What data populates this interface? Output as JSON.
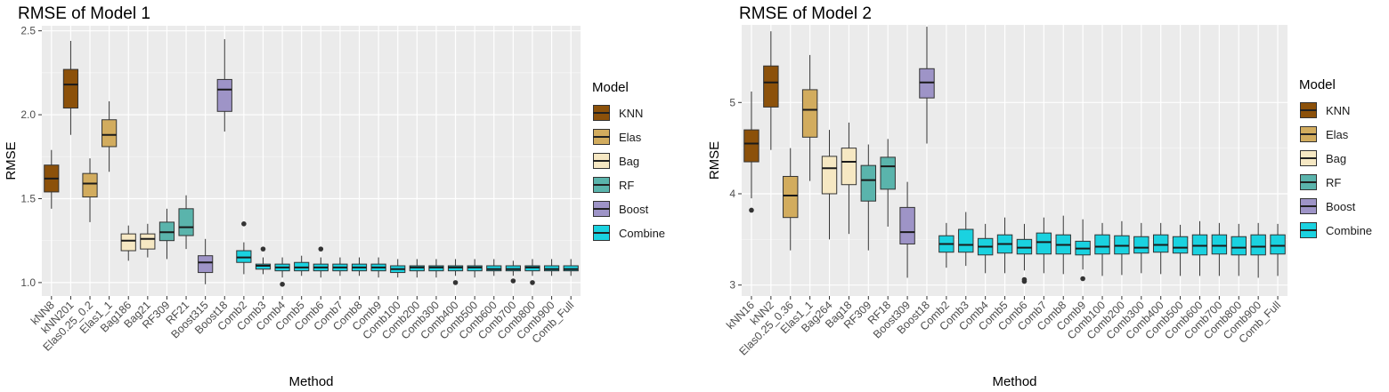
{
  "colors": {
    "KNN": "#8c510a",
    "Elas": "#d2ac5e",
    "Bag": "#f6e8c3",
    "RF": "#5ab4ac",
    "Boost": "#9e94c7",
    "Combine": "#1ad2e0",
    "panel_bg": "#ebebeb",
    "grid": "#ffffff"
  },
  "legend": {
    "title": "Model",
    "items": [
      "KNN",
      "Elas",
      "Bag",
      "RF",
      "Boost",
      "Combine"
    ]
  },
  "chart_data": [
    {
      "type": "boxplot",
      "title": "RMSE of Model 1",
      "xlabel": "Method",
      "ylabel": "RMSE",
      "ylim": [
        0.92,
        2.53
      ],
      "yticks": [
        1.0,
        1.5,
        2.0,
        2.5
      ],
      "ytick_labels": [
        "1.0",
        "1.5",
        "2.0",
        "2.5"
      ],
      "grid": true,
      "legend_position": "right",
      "boxes": [
        {
          "label": "kNN8",
          "group": "KNN",
          "whisker_low": 1.44,
          "q1": 1.54,
          "median": 1.62,
          "q3": 1.7,
          "whisker_high": 1.79,
          "outliers": []
        },
        {
          "label": "kNN201",
          "group": "KNN",
          "whisker_low": 1.88,
          "q1": 2.04,
          "median": 2.18,
          "q3": 2.27,
          "whisker_high": 2.44,
          "outliers": []
        },
        {
          "label": "Elas0.25_0.2",
          "group": "Elas",
          "whisker_low": 1.36,
          "q1": 1.51,
          "median": 1.59,
          "q3": 1.65,
          "whisker_high": 1.74,
          "outliers": []
        },
        {
          "label": "Elas1_1",
          "group": "Elas",
          "whisker_low": 1.66,
          "q1": 1.81,
          "median": 1.88,
          "q3": 1.97,
          "whisker_high": 2.08,
          "outliers": []
        },
        {
          "label": "Bag186",
          "group": "Bag",
          "whisker_low": 1.13,
          "q1": 1.19,
          "median": 1.25,
          "q3": 1.29,
          "whisker_high": 1.34,
          "outliers": []
        },
        {
          "label": "Bag21",
          "group": "Bag",
          "whisker_low": 1.15,
          "q1": 1.2,
          "median": 1.26,
          "q3": 1.29,
          "whisker_high": 1.35,
          "outliers": []
        },
        {
          "label": "RF309",
          "group": "RF",
          "whisker_low": 1.14,
          "q1": 1.25,
          "median": 1.3,
          "q3": 1.36,
          "whisker_high": 1.44,
          "outliers": []
        },
        {
          "label": "RF21",
          "group": "RF",
          "whisker_low": 1.2,
          "q1": 1.28,
          "median": 1.33,
          "q3": 1.44,
          "whisker_high": 1.52,
          "outliers": []
        },
        {
          "label": "Boost315",
          "group": "Boost",
          "whisker_low": 0.99,
          "q1": 1.06,
          "median": 1.12,
          "q3": 1.16,
          "whisker_high": 1.26,
          "outliers": []
        },
        {
          "label": "Boost18",
          "group": "Boost",
          "whisker_low": 1.9,
          "q1": 2.02,
          "median": 2.15,
          "q3": 2.21,
          "whisker_high": 2.45,
          "outliers": []
        },
        {
          "label": "Comb2",
          "group": "Combine",
          "whisker_low": 1.05,
          "q1": 1.12,
          "median": 1.15,
          "q3": 1.19,
          "whisker_high": 1.24,
          "outliers": [
            1.35
          ]
        },
        {
          "label": "Comb3",
          "group": "Combine",
          "whisker_low": 1.05,
          "q1": 1.08,
          "median": 1.1,
          "q3": 1.11,
          "whisker_high": 1.15,
          "outliers": [
            1.2
          ]
        },
        {
          "label": "Comb4",
          "group": "Combine",
          "whisker_low": 1.03,
          "q1": 1.07,
          "median": 1.09,
          "q3": 1.11,
          "whisker_high": 1.15,
          "outliers": [
            0.99
          ]
        },
        {
          "label": "Comb5",
          "group": "Combine",
          "whisker_low": 1.04,
          "q1": 1.07,
          "median": 1.09,
          "q3": 1.12,
          "whisker_high": 1.16,
          "outliers": []
        },
        {
          "label": "Comb6",
          "group": "Combine",
          "whisker_low": 1.03,
          "q1": 1.07,
          "median": 1.09,
          "q3": 1.11,
          "whisker_high": 1.15,
          "outliers": [
            1.2
          ]
        },
        {
          "label": "Comb7",
          "group": "Combine",
          "whisker_low": 1.04,
          "q1": 1.07,
          "median": 1.09,
          "q3": 1.11,
          "whisker_high": 1.15,
          "outliers": []
        },
        {
          "label": "Comb8",
          "group": "Combine",
          "whisker_low": 1.04,
          "q1": 1.07,
          "median": 1.09,
          "q3": 1.11,
          "whisker_high": 1.15,
          "outliers": []
        },
        {
          "label": "Comb9",
          "group": "Combine",
          "whisker_low": 1.03,
          "q1": 1.07,
          "median": 1.09,
          "q3": 1.11,
          "whisker_high": 1.15,
          "outliers": []
        },
        {
          "label": "Comb100",
          "group": "Combine",
          "whisker_low": 1.03,
          "q1": 1.06,
          "median": 1.08,
          "q3": 1.1,
          "whisker_high": 1.14,
          "outliers": []
        },
        {
          "label": "Comb200",
          "group": "Combine",
          "whisker_low": 1.03,
          "q1": 1.07,
          "median": 1.09,
          "q3": 1.1,
          "whisker_high": 1.14,
          "outliers": []
        },
        {
          "label": "Comb300",
          "group": "Combine",
          "whisker_low": 1.03,
          "q1": 1.07,
          "median": 1.09,
          "q3": 1.1,
          "whisker_high": 1.14,
          "outliers": []
        },
        {
          "label": "Comb400",
          "group": "Combine",
          "whisker_low": 1.04,
          "q1": 1.07,
          "median": 1.09,
          "q3": 1.1,
          "whisker_high": 1.14,
          "outliers": [
            1.0
          ]
        },
        {
          "label": "Comb500",
          "group": "Combine",
          "whisker_low": 1.03,
          "q1": 1.07,
          "median": 1.09,
          "q3": 1.1,
          "whisker_high": 1.14,
          "outliers": []
        },
        {
          "label": "Comb600",
          "group": "Combine",
          "whisker_low": 1.04,
          "q1": 1.07,
          "median": 1.08,
          "q3": 1.1,
          "whisker_high": 1.14,
          "outliers": []
        },
        {
          "label": "Comb700",
          "group": "Combine",
          "whisker_low": 1.04,
          "q1": 1.07,
          "median": 1.08,
          "q3": 1.1,
          "whisker_high": 1.13,
          "outliers": [
            1.01
          ]
        },
        {
          "label": "Comb800",
          "group": "Combine",
          "whisker_low": 1.04,
          "q1": 1.07,
          "median": 1.09,
          "q3": 1.1,
          "whisker_high": 1.14,
          "outliers": [
            1.0
          ]
        },
        {
          "label": "Comb900",
          "group": "Combine",
          "whisker_low": 1.04,
          "q1": 1.07,
          "median": 1.08,
          "q3": 1.1,
          "whisker_high": 1.14,
          "outliers": []
        },
        {
          "label": "Comb_Full",
          "group": "Combine",
          "whisker_low": 1.04,
          "q1": 1.07,
          "median": 1.08,
          "q3": 1.1,
          "whisker_high": 1.14,
          "outliers": []
        }
      ]
    },
    {
      "type": "boxplot",
      "title": "RMSE of Model 2",
      "xlabel": "Method",
      "ylabel": "RMSE",
      "ylim": [
        2.88,
        5.85
      ],
      "yticks": [
        3,
        4,
        5
      ],
      "ytick_labels": [
        "3",
        "4",
        "5"
      ],
      "grid": true,
      "legend_position": "right",
      "boxes": [
        {
          "label": "kNN16",
          "group": "KNN",
          "whisker_low": 3.95,
          "q1": 4.35,
          "median": 4.55,
          "q3": 4.7,
          "whisker_high": 5.12,
          "outliers": [
            3.82
          ]
        },
        {
          "label": "kNN2",
          "group": "KNN",
          "whisker_low": 4.48,
          "q1": 4.95,
          "median": 5.22,
          "q3": 5.4,
          "whisker_high": 5.78,
          "outliers": []
        },
        {
          "label": "Elas0.25_0.36",
          "group": "Elas",
          "whisker_low": 3.38,
          "q1": 3.74,
          "median": 3.98,
          "q3": 4.19,
          "whisker_high": 4.5,
          "outliers": []
        },
        {
          "label": "Elas1_1",
          "group": "Elas",
          "whisker_low": 4.14,
          "q1": 4.62,
          "median": 4.92,
          "q3": 5.14,
          "whisker_high": 5.52,
          "outliers": []
        },
        {
          "label": "Bag264",
          "group": "Bag",
          "whisker_low": 3.5,
          "q1": 4.0,
          "median": 4.28,
          "q3": 4.41,
          "whisker_high": 4.7,
          "outliers": []
        },
        {
          "label": "Bag18",
          "group": "Bag",
          "whisker_low": 3.56,
          "q1": 4.1,
          "median": 4.35,
          "q3": 4.5,
          "whisker_high": 4.78,
          "outliers": []
        },
        {
          "label": "RF309",
          "group": "RF",
          "whisker_low": 3.38,
          "q1": 3.92,
          "median": 4.15,
          "q3": 4.31,
          "whisker_high": 4.54,
          "outliers": []
        },
        {
          "label": "RF18",
          "group": "RF",
          "whisker_low": 3.64,
          "q1": 4.05,
          "median": 4.3,
          "q3": 4.4,
          "whisker_high": 4.6,
          "outliers": []
        },
        {
          "label": "Boost309",
          "group": "Boost",
          "whisker_low": 3.08,
          "q1": 3.45,
          "median": 3.58,
          "q3": 3.85,
          "whisker_high": 4.13,
          "outliers": []
        },
        {
          "label": "Boost18",
          "group": "Boost",
          "whisker_low": 4.55,
          "q1": 5.05,
          "median": 5.22,
          "q3": 5.37,
          "whisker_high": 5.83,
          "outliers": []
        },
        {
          "label": "Comb2",
          "group": "Combine",
          "whisker_low": 3.19,
          "q1": 3.36,
          "median": 3.45,
          "q3": 3.54,
          "whisker_high": 3.68,
          "outliers": []
        },
        {
          "label": "Comb3",
          "group": "Combine",
          "whisker_low": 3.21,
          "q1": 3.36,
          "median": 3.44,
          "q3": 3.61,
          "whisker_high": 3.8,
          "outliers": []
        },
        {
          "label": "Comb4",
          "group": "Combine",
          "whisker_low": 3.13,
          "q1": 3.33,
          "median": 3.42,
          "q3": 3.51,
          "whisker_high": 3.67,
          "outliers": []
        },
        {
          "label": "Comb5",
          "group": "Combine",
          "whisker_low": 3.13,
          "q1": 3.35,
          "median": 3.45,
          "q3": 3.55,
          "whisker_high": 3.74,
          "outliers": []
        },
        {
          "label": "Comb6",
          "group": "Combine",
          "whisker_low": 3.16,
          "q1": 3.34,
          "median": 3.41,
          "q3": 3.5,
          "whisker_high": 3.67,
          "outliers": [
            3.04,
            3.06
          ]
        },
        {
          "label": "Comb7",
          "group": "Combine",
          "whisker_low": 3.13,
          "q1": 3.34,
          "median": 3.47,
          "q3": 3.57,
          "whisker_high": 3.74,
          "outliers": []
        },
        {
          "label": "Comb8",
          "group": "Combine",
          "whisker_low": 3.12,
          "q1": 3.34,
          "median": 3.44,
          "q3": 3.55,
          "whisker_high": 3.76,
          "outliers": []
        },
        {
          "label": "Comb9",
          "group": "Combine",
          "whisker_low": 3.17,
          "q1": 3.33,
          "median": 3.4,
          "q3": 3.48,
          "whisker_high": 3.72,
          "outliers": [
            3.07
          ]
        },
        {
          "label": "Comb100",
          "group": "Combine",
          "whisker_low": 3.1,
          "q1": 3.34,
          "median": 3.42,
          "q3": 3.55,
          "whisker_high": 3.68,
          "outliers": []
        },
        {
          "label": "Comb200",
          "group": "Combine",
          "whisker_low": 3.11,
          "q1": 3.34,
          "median": 3.43,
          "q3": 3.54,
          "whisker_high": 3.7,
          "outliers": []
        },
        {
          "label": "Comb300",
          "group": "Combine",
          "whisker_low": 3.13,
          "q1": 3.35,
          "median": 3.41,
          "q3": 3.53,
          "whisker_high": 3.68,
          "outliers": []
        },
        {
          "label": "Comb400",
          "group": "Combine",
          "whisker_low": 3.12,
          "q1": 3.36,
          "median": 3.44,
          "q3": 3.55,
          "whisker_high": 3.68,
          "outliers": []
        },
        {
          "label": "Comb500",
          "group": "Combine",
          "whisker_low": 3.1,
          "q1": 3.35,
          "median": 3.41,
          "q3": 3.53,
          "whisker_high": 3.66,
          "outliers": []
        },
        {
          "label": "Comb600",
          "group": "Combine",
          "whisker_low": 3.1,
          "q1": 3.33,
          "median": 3.43,
          "q3": 3.55,
          "whisker_high": 3.7,
          "outliers": []
        },
        {
          "label": "Comb700",
          "group": "Combine",
          "whisker_low": 3.1,
          "q1": 3.34,
          "median": 3.43,
          "q3": 3.55,
          "whisker_high": 3.68,
          "outliers": []
        },
        {
          "label": "Comb800",
          "group": "Combine",
          "whisker_low": 3.1,
          "q1": 3.33,
          "median": 3.41,
          "q3": 3.53,
          "whisker_high": 3.67,
          "outliers": []
        },
        {
          "label": "Comb900",
          "group": "Combine",
          "whisker_low": 3.08,
          "q1": 3.33,
          "median": 3.42,
          "q3": 3.55,
          "whisker_high": 3.68,
          "outliers": []
        },
        {
          "label": "Comb_Full",
          "group": "Combine",
          "whisker_low": 3.1,
          "q1": 3.34,
          "median": 3.43,
          "q3": 3.55,
          "whisker_high": 3.67,
          "outliers": []
        }
      ]
    }
  ]
}
